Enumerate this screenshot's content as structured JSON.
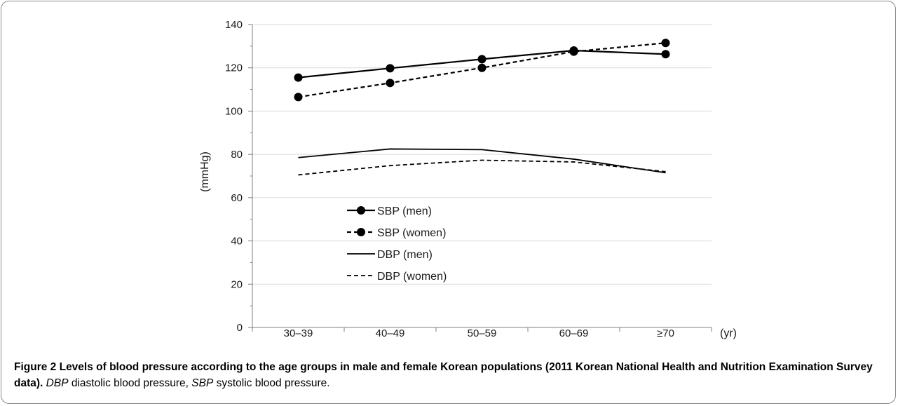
{
  "chart_data": {
    "type": "line",
    "categories": [
      "30–39",
      "40–49",
      "50–59",
      "60–69",
      "≥70"
    ],
    "series": [
      {
        "name": "SBP (men)",
        "values": [
          115.5,
          119.8,
          124.0,
          128.0,
          126.3
        ],
        "line": "solid",
        "markers": true
      },
      {
        "name": "SBP (women)",
        "values": [
          106.5,
          113.0,
          120.0,
          127.5,
          131.5
        ],
        "line": "dashed",
        "markers": true
      },
      {
        "name": "DBP (men)",
        "values": [
          78.5,
          82.5,
          82.2,
          77.8,
          71.5
        ],
        "line": "solid",
        "markers": false
      },
      {
        "name": "DBP (women)",
        "values": [
          70.5,
          74.8,
          77.3,
          76.5,
          72.0
        ],
        "line": "dashed",
        "markers": false
      }
    ],
    "ylim": [
      0,
      140
    ],
    "yticks": [
      0,
      20,
      40,
      60,
      80,
      100,
      120,
      140
    ],
    "ylabel": "(mmHg)",
    "xunit": "(yr)",
    "grid": "horizontal",
    "legend_position": "center-left",
    "colors": {
      "line": "#000000",
      "grid": "#d9d9d9",
      "axis": "#7f7f7f"
    }
  },
  "caption": {
    "title": "Figure 2 Levels of blood pressure according to the age groups in male and female Korean populations (2011 Korean National Health and Nutrition Examination Survey data).",
    "abbr1": "DBP",
    "def1": " diastolic blood pressure, ",
    "abbr2": "SBP",
    "def2": " systolic blood pressure."
  }
}
